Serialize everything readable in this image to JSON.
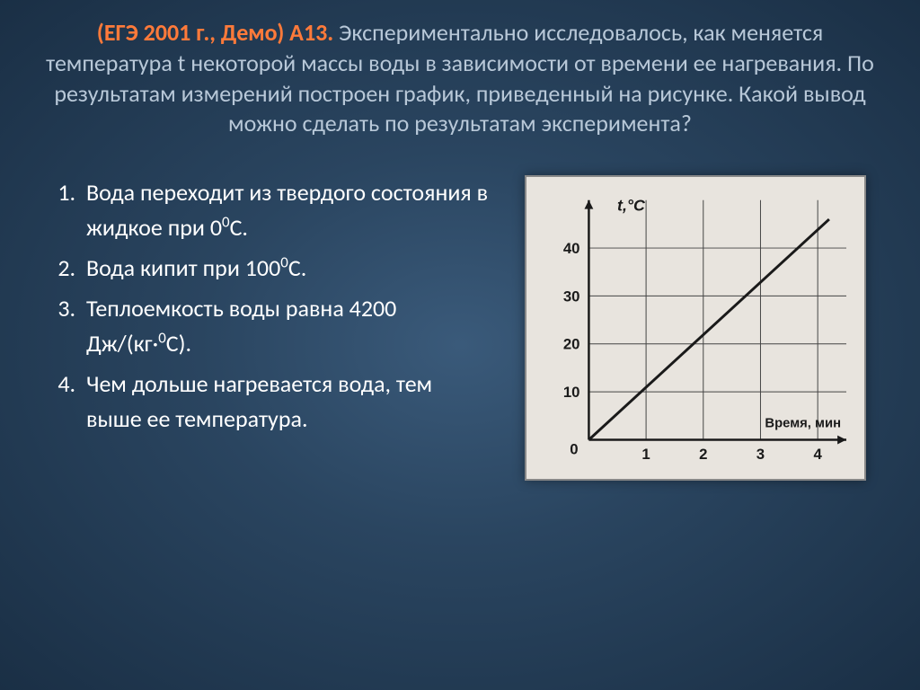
{
  "question": {
    "prefix": "(ЕГЭ 2001 г., Демо) А13.",
    "body": "Экспериментально исследовалось, как меняется температура t некоторой массы воды в зависимости от времени ее нагревания. По результатам измерений построен график, приведенный на рисунке. Какой вывод можно сделать по результатам эксперимента?"
  },
  "options": [
    {
      "pre": "Вода переходит из твердого состояния в жидкое при 0",
      "sup": "0",
      "post": "С."
    },
    {
      "pre": "Вода кипит при 100",
      "sup": "0",
      "post": "С."
    },
    {
      "pre": "Теплоемкость воды равна 4200 Дж/(кг·",
      "sup": "0",
      "post": "С)."
    },
    {
      "pre": "Чем дольше нагревается вода, тем выше ее температура.",
      "sup": "",
      "post": ""
    }
  ],
  "chart": {
    "type": "line",
    "background_color": "#e8e4de",
    "axis_color": "#1a1a1a",
    "grid_color": "#444444",
    "line_color": "#1a1a1a",
    "text_color": "#1a1a1a",
    "y_label": "t,°C",
    "x_label": "Время, мин",
    "y_ticks": [
      10,
      20,
      30,
      40
    ],
    "x_ticks": [
      1,
      2,
      3,
      4
    ],
    "xlim": [
      0,
      4.5
    ],
    "ylim": [
      0,
      50
    ],
    "line_points": [
      [
        0,
        0
      ],
      [
        4.2,
        46
      ]
    ],
    "title_fontsize": 18,
    "tick_fontsize": 17,
    "line_width": 3,
    "axis_width": 2.5,
    "grid_width": 1,
    "origin_label": "0"
  }
}
